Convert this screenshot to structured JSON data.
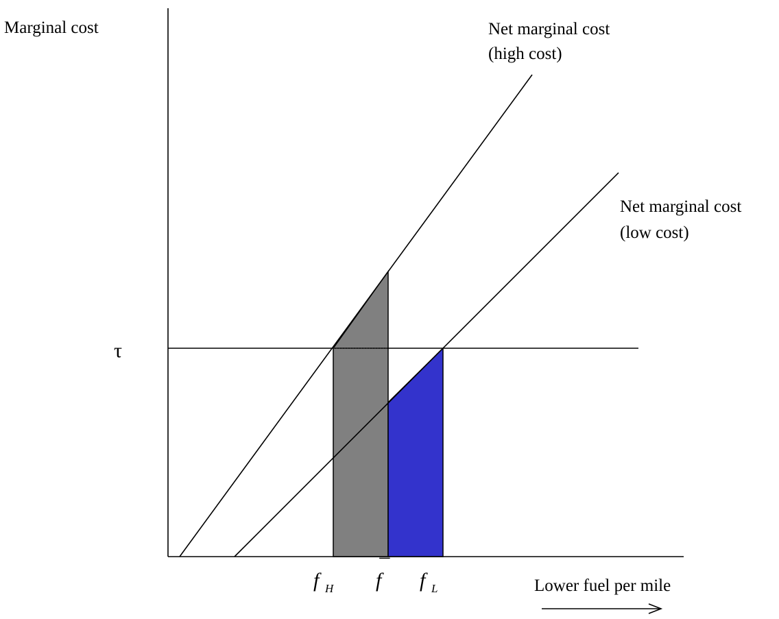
{
  "axes": {
    "y_label": "Marginal cost",
    "x_label": "Lower fuel per mile"
  },
  "curves": {
    "high": {
      "label_line1": "Net marginal cost",
      "label_line2": "(high cost)"
    },
    "low": {
      "label_line1": "Net marginal cost",
      "label_line2": "(low cost)"
    }
  },
  "tau": {
    "label": "τ"
  },
  "ticks": {
    "f_H": {
      "base": "f",
      "sub": "H"
    },
    "f_bar": {
      "base": "f",
      "bar": "¯"
    },
    "f_L": {
      "base": "f",
      "sub": "L"
    }
  },
  "colors": {
    "gray_area": "#808080",
    "blue_area": "#3333CC",
    "lines": "#000000",
    "background": "#FFFFFF"
  }
}
